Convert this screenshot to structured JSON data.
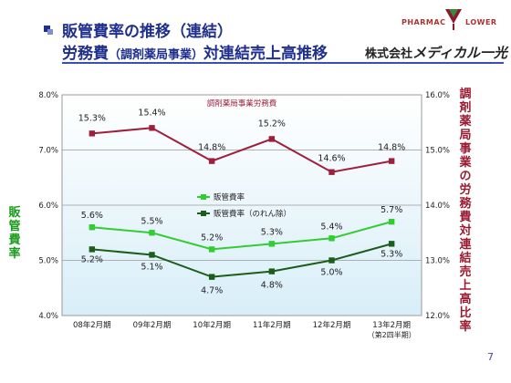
{
  "header": {
    "title_line1": "販管費率の推移（連結）",
    "title_line2_a": "労務費",
    "title_line2_small": "（調剤薬局事業）",
    "title_line2_b": "対連結売上高推移",
    "company_prefix": "株式会社",
    "company_brand": "メディカル一光",
    "logo_left": "PHARMAC",
    "logo_right": "LOWER"
  },
  "page_number": "7",
  "chart_data": {
    "type": "line",
    "categories": [
      "08年2月期",
      "09年2月期",
      "10年2月期",
      "11年2月期",
      "12年2月期",
      "13年2月期"
    ],
    "category_sublabels": [
      "",
      "",
      "",
      "",
      "",
      "（第2四半期）"
    ],
    "ylabel_left": "販管費率",
    "ylabel_right": "調剤薬局事業の労務費対連結売上高比率",
    "ylim_left": [
      4.0,
      8.0
    ],
    "ylim_right": [
      12.0,
      16.0
    ],
    "yticks_left": [
      "4.0%",
      "5.0%",
      "6.0%",
      "7.0%",
      "8.0%"
    ],
    "yticks_right": [
      "12.0%",
      "13.0%",
      "14.0%",
      "15.0%",
      "16.0%"
    ],
    "grid": true,
    "series": [
      {
        "name": "調剤薬局事業労務費",
        "axis": "right",
        "color": "#a01e3c",
        "marker": "square",
        "values": [
          15.3,
          15.4,
          14.8,
          15.2,
          14.6,
          14.8
        ],
        "labels": [
          "15.3%",
          "15.4%",
          "14.8%",
          "15.2%",
          "14.6%",
          "14.8%"
        ]
      },
      {
        "name": "販管費率",
        "axis": "left",
        "color": "#33cc33",
        "marker": "square",
        "values": [
          5.6,
          5.5,
          5.2,
          5.3,
          5.4,
          5.7
        ],
        "labels": [
          "5.6%",
          "5.5%",
          "5.2%",
          "5.3%",
          "5.4%",
          "5.7%"
        ]
      },
      {
        "name": "販管費率（のれん除）",
        "axis": "left",
        "color": "#1a5e1a",
        "marker": "square",
        "values": [
          5.2,
          5.1,
          4.7,
          4.8,
          5.0,
          5.3
        ],
        "labels": [
          "5.2%",
          "5.1%",
          "4.7%",
          "4.8%",
          "5.0%",
          "5.3%"
        ]
      }
    ]
  }
}
